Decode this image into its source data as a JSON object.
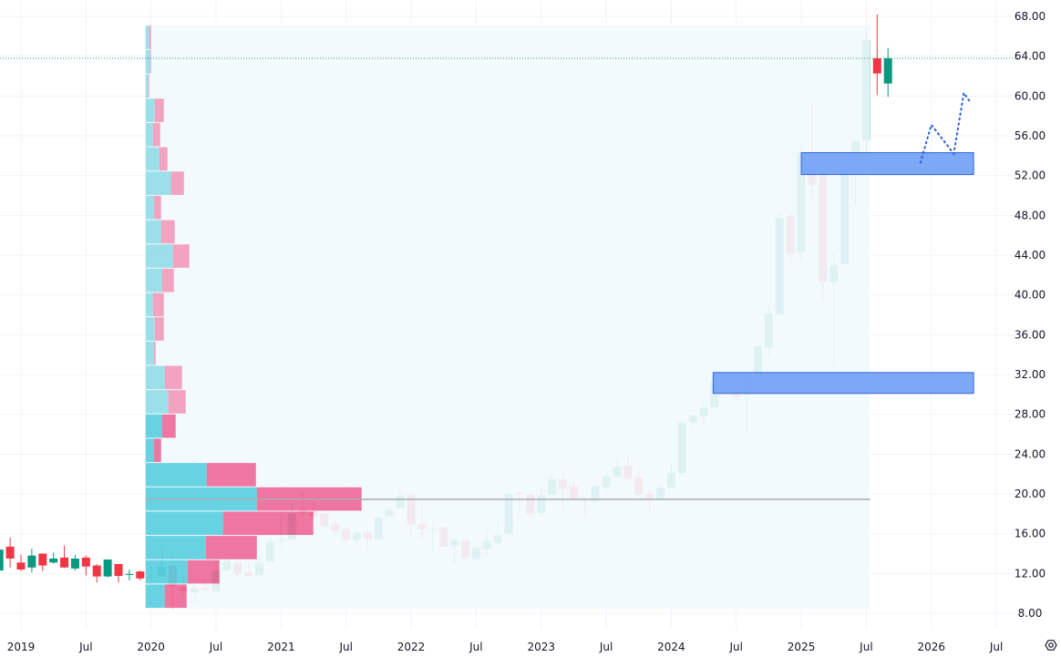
{
  "chart_data": {
    "type": "candlestick",
    "interval": "monthly",
    "ylim": [
      8,
      68
    ],
    "y_ticks": [
      "8.00",
      "12.00",
      "16.00",
      "20.00",
      "24.00",
      "28.00",
      "32.00",
      "36.00",
      "40.00",
      "44.00",
      "48.00",
      "52.00",
      "56.00",
      "60.00",
      "64.00",
      "68.00"
    ],
    "x_ticks": [
      {
        "date": "2019-01",
        "label": "2019"
      },
      {
        "date": "2019-07",
        "label": "Jul"
      },
      {
        "date": "2020-01",
        "label": "2020"
      },
      {
        "date": "2020-07",
        "label": "Jul"
      },
      {
        "date": "2021-01",
        "label": "2021"
      },
      {
        "date": "2021-07",
        "label": "Jul"
      },
      {
        "date": "2022-01",
        "label": "2022"
      },
      {
        "date": "2022-07",
        "label": "Jul"
      },
      {
        "date": "2023-01",
        "label": "2023"
      },
      {
        "date": "2023-07",
        "label": "Jul"
      },
      {
        "date": "2024-01",
        "label": "2024"
      },
      {
        "date": "2024-07",
        "label": "Jul"
      },
      {
        "date": "2025-01",
        "label": "2025"
      },
      {
        "date": "2025-07",
        "label": "Jul"
      },
      {
        "date": "2026-01",
        "label": "2026"
      },
      {
        "date": "2026-07",
        "label": "Jul"
      }
    ],
    "grid": true,
    "colors": {
      "up": "#089981",
      "down": "#f23645",
      "zone_fill": "#75a3f6",
      "zone_border": "#3566d6",
      "projection": "#2f5fd6",
      "poc_line": "#a8abb3",
      "last_price_line": "#22998a",
      "profile_bg": "#f2fafd",
      "profile_up": "#5bcfe0",
      "profile_down": "#ee6b98",
      "profile_up_light": "#92dde8",
      "profile_down_light": "#f19cbb"
    },
    "candles_ohlc": [
      [
        "2018-11",
        12.3,
        14.6,
        12.2,
        14.4
      ],
      [
        "2018-12",
        14.7,
        15.6,
        12.6,
        13.5
      ],
      [
        "2019-01",
        13.1,
        13.9,
        12.25,
        12.4
      ],
      [
        "2019-02",
        12.6,
        14.5,
        12.1,
        13.8
      ],
      [
        "2019-03",
        14.0,
        14.0,
        12.25,
        12.8
      ],
      [
        "2019-04",
        13.1,
        14.1,
        13.0,
        13.5
      ],
      [
        "2019-05",
        13.6,
        14.8,
        12.55,
        12.6
      ],
      [
        "2019-06",
        12.5,
        13.9,
        12.3,
        13.5
      ],
      [
        "2019-07",
        13.6,
        13.8,
        11.8,
        12.7
      ],
      [
        "2019-08",
        12.8,
        12.95,
        11.1,
        11.7
      ],
      [
        "2019-09",
        11.7,
        13.4,
        11.6,
        13.4
      ],
      [
        "2019-10",
        12.95,
        12.95,
        11.1,
        11.75
      ],
      [
        "2019-11",
        11.9,
        12.4,
        11.3,
        11.95
      ],
      [
        "2019-12",
        12.2,
        12.3,
        11.3,
        11.5
      ],
      [
        "2020-01",
        11.6,
        12.8,
        11.3,
        11.65
      ],
      [
        "2020-02",
        11.7,
        14.7,
        11.7,
        12.65
      ],
      [
        "2020-03",
        12.8,
        13.6,
        8.45,
        10.7
      ],
      [
        "2020-04",
        10.6,
        11.7,
        9.65,
        10.2
      ],
      [
        "2020-05",
        10.05,
        10.9,
        9.05,
        10.5
      ],
      [
        "2020-06",
        10.6,
        11.3,
        9.95,
        10.35
      ],
      [
        "2020-07",
        10.2,
        13.3,
        10.2,
        12.3
      ],
      [
        "2020-08",
        12.3,
        13.4,
        12.3,
        13.2
      ],
      [
        "2020-09",
        13.1,
        13.2,
        11.6,
        11.95
      ],
      [
        "2020-10",
        12.1,
        12.95,
        11.6,
        11.75
      ],
      [
        "2020-11",
        11.85,
        13.9,
        11.8,
        13.1
      ],
      [
        "2020-12",
        13.2,
        15.7,
        13.2,
        15.15
      ],
      [
        "2021-01",
        15.3,
        17.9,
        14.75,
        15.4
      ],
      [
        "2021-02",
        15.4,
        19.1,
        15.4,
        18.05
      ],
      [
        "2021-03",
        18.4,
        20.1,
        17.75,
        18.1
      ],
      [
        "2021-04",
        18.3,
        19.3,
        17.5,
        17.75
      ],
      [
        "2021-05",
        18.05,
        18.05,
        16.4,
        16.75
      ],
      [
        "2021-06",
        16.9,
        17.4,
        15.75,
        16.3
      ],
      [
        "2021-07",
        16.5,
        16.6,
        14.85,
        15.4
      ],
      [
        "2021-08",
        15.4,
        16.3,
        15.0,
        16.1
      ],
      [
        "2021-09",
        16.1,
        16.5,
        14.6,
        15.45
      ],
      [
        "2021-10",
        15.45,
        17.6,
        15.45,
        17.6
      ],
      [
        "2021-11",
        17.75,
        18.7,
        17.75,
        18.35
      ],
      [
        "2021-12",
        18.55,
        20.6,
        18.5,
        19.8
      ],
      [
        "2022-01",
        19.9,
        20.1,
        15.9,
        16.9
      ],
      [
        "2022-02",
        16.98,
        19.06,
        15.45,
        16.46
      ],
      [
        "2022-03",
        16.4,
        17.2,
        14.14,
        16.45
      ],
      [
        "2022-04",
        16.6,
        16.7,
        14.7,
        14.7
      ],
      [
        "2022-05",
        14.8,
        15.5,
        13.0,
        15.3
      ],
      [
        "2022-06",
        15.24,
        15.4,
        13.3,
        13.62
      ],
      [
        "2022-07",
        13.47,
        14.7,
        13.2,
        14.6
      ],
      [
        "2022-08",
        14.45,
        16.43,
        13.77,
        15.3
      ],
      [
        "2022-09",
        15.06,
        17.6,
        14.84,
        15.85
      ],
      [
        "2022-10",
        16.0,
        20.1,
        15.67,
        19.97
      ],
      [
        "2022-11",
        20.1,
        20.2,
        18.1,
        19.95
      ],
      [
        "2022-12",
        19.97,
        19.97,
        17.04,
        17.96
      ],
      [
        "2023-01",
        18.05,
        20.8,
        17.74,
        19.88
      ],
      [
        "2023-02",
        19.88,
        22.17,
        19.88,
        21.47
      ],
      [
        "2023-03",
        21.47,
        22.5,
        18.5,
        20.49
      ],
      [
        "2023-04",
        20.74,
        21.47,
        19.2,
        19.42
      ],
      [
        "2023-05",
        19.3,
        19.82,
        17.68,
        19.25
      ],
      [
        "2023-06",
        19.21,
        21.0,
        19.21,
        20.74
      ],
      [
        "2023-07",
        20.7,
        22.17,
        20.3,
        21.77
      ],
      [
        "2023-08",
        21.7,
        23.5,
        21.7,
        22.7
      ],
      [
        "2023-09",
        22.84,
        23.85,
        21.3,
        21.5
      ],
      [
        "2023-10",
        21.65,
        22.5,
        19.67,
        19.94
      ],
      [
        "2023-11",
        19.97,
        20.55,
        18.1,
        19.48
      ],
      [
        "2023-12",
        19.48,
        21.16,
        19.48,
        20.6
      ],
      [
        "2024-01",
        20.64,
        23.1,
        20.64,
        22.08
      ],
      [
        "2024-02",
        22.08,
        27.3,
        22.08,
        27.15
      ],
      [
        "2024-03",
        27.2,
        28.07,
        26.66,
        27.88
      ],
      [
        "2024-04",
        27.82,
        29.4,
        26.75,
        28.67
      ],
      [
        "2024-05",
        28.7,
        32.2,
        28.7,
        31.3
      ],
      [
        "2024-06",
        31.54,
        31.8,
        29.59,
        30.57
      ],
      [
        "2024-07",
        30.96,
        32.15,
        29.13,
        29.74
      ],
      [
        "2024-08",
        29.95,
        32.15,
        25.9,
        32.15
      ],
      [
        "2024-09",
        31.95,
        34.85,
        31.2,
        34.85
      ],
      [
        "2024-10",
        34.7,
        38.66,
        33.93,
        38.14
      ],
      [
        "2024-11",
        38.05,
        48.4,
        38.0,
        47.76
      ],
      [
        "2024-12",
        47.9,
        48.4,
        42.8,
        44.16
      ],
      [
        "2025-01",
        44.3,
        55.3,
        43.4,
        54.3
      ],
      [
        "2025-02",
        52.6,
        59.2,
        49.8,
        51.09
      ],
      [
        "2025-03",
        52.34,
        52.9,
        39.36,
        41.35
      ],
      [
        "2025-04",
        41.32,
        44.37,
        32.86,
        43.0
      ],
      [
        "2025-05",
        43.09,
        53.5,
        43.09,
        52.4
      ],
      [
        "2025-06",
        52.15,
        55.6,
        49.1,
        55.45
      ],
      [
        "2025-07",
        55.55,
        66.9,
        53.2,
        65.62
      ],
      [
        "2025-08",
        63.79,
        68.18,
        60.1,
        62.26
      ],
      [
        "2025-09",
        61.25,
        64.83,
        59.9,
        63.79
      ]
    ],
    "last_price": 63.79,
    "zones": [
      {
        "from": "2025-01",
        "to": "2026-04-28",
        "low": 52.1,
        "high": 54.3
      },
      {
        "from": "2024-04-27",
        "to": "2026-04-28",
        "low": 30.1,
        "high": 32.2
      }
    ],
    "projection_path": [
      [
        "2025-12-01",
        53.3
      ],
      [
        "2026-01-01",
        57.1
      ],
      [
        "2026-03-03",
        54.2
      ],
      [
        "2026-04-01",
        60.3
      ],
      [
        "2026-04-20",
        59.3
      ]
    ],
    "volume_profile": {
      "from": "2019-12-16",
      "to": "2025-07-12",
      "low": 8.5,
      "high": 67.1,
      "poc_price": 19.45,
      "value_area_rows": 8,
      "rows_bottom_to_top": [
        [
          21,
          24
        ],
        [
          46,
          35
        ],
        [
          66,
          56
        ],
        [
          85,
          99
        ],
        [
          122,
          115
        ],
        [
          67,
          54
        ],
        [
          9,
          8
        ],
        [
          18,
          15
        ],
        [
          25,
          19
        ],
        [
          21,
          19
        ],
        [
          9,
          2
        ],
        [
          10,
          10
        ],
        [
          8,
          12
        ],
        [
          18,
          13
        ],
        [
          30,
          18
        ],
        [
          17,
          15
        ],
        [
          9,
          8
        ],
        [
          28,
          14
        ],
        [
          15,
          9
        ],
        [
          8,
          8
        ],
        [
          10,
          10
        ],
        [
          3,
          1
        ],
        [
          5,
          1
        ],
        [
          4,
          2
        ]
      ]
    }
  }
}
